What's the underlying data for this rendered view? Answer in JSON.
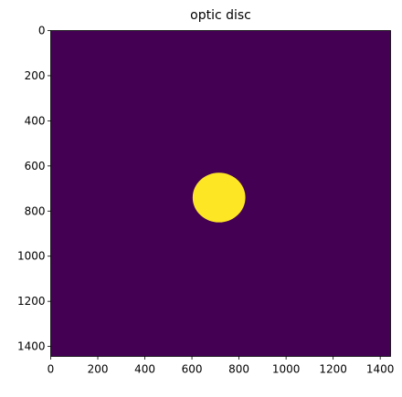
{
  "chart_data": {
    "type": "heatmap",
    "title": "optic disc",
    "xlabel": "",
    "ylabel": "",
    "image_size": [
      1444,
      1444
    ],
    "xlim": [
      0,
      1444
    ],
    "ylim": [
      1444,
      0
    ],
    "x_ticks": [
      0,
      200,
      400,
      600,
      800,
      1000,
      1200,
      1400
    ],
    "y_ticks": [
      0,
      200,
      400,
      600,
      800,
      1000,
      1200,
      1400
    ],
    "colormap": "viridis",
    "background_value": 0,
    "background_color": "#440154",
    "foreground_value": 1,
    "foreground_color": "#fde725",
    "regions": [
      {
        "label": "optic disc",
        "center_x": 715,
        "center_y": 740,
        "radius_x": 112,
        "radius_y": 110
      }
    ],
    "grid": false
  }
}
